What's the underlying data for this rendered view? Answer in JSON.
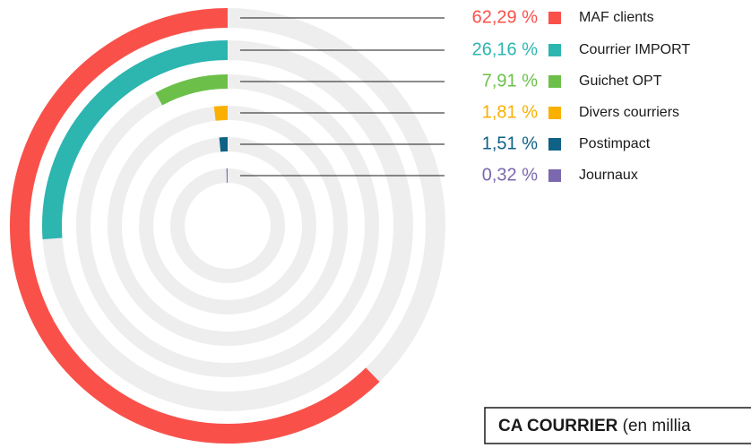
{
  "chart_data": {
    "type": "radial-bar",
    "categories": [
      "MAF clients",
      "Courrier IMPORT",
      "Guichet OPT",
      "Divers courriers",
      "Postimpact",
      "Journaux"
    ],
    "values": [
      62.29,
      26.16,
      7.91,
      1.81,
      1.51,
      0.32
    ],
    "value_labels": [
      "62,29 %",
      "26,16 %",
      "7,91 %",
      "1,81 %",
      "1,51 %",
      "0,32 %"
    ],
    "colors": [
      "#f9514a",
      "#2db5b0",
      "#6cc04a",
      "#f9b000",
      "#0f6185",
      "#7b68ae"
    ],
    "rlim": [
      0,
      100
    ],
    "note": {
      "bold": "CA COURRIER",
      "text": "(en millia"
    }
  }
}
